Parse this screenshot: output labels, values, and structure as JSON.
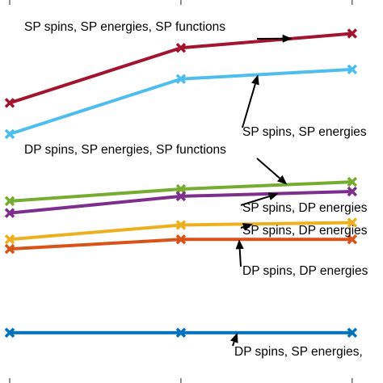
{
  "chart_data": {
    "type": "line",
    "title": "",
    "xlabel": "",
    "ylabel": "",
    "x": [
      1,
      2,
      3
    ],
    "xlim": [
      1,
      3.18
    ],
    "ylim": [
      0.88,
      2.48
    ],
    "grid": false,
    "legend": "none",
    "series": [
      {
        "color": "#A2142F",
        "values": [
          2.05,
          2.28,
          2.34
        ]
      },
      {
        "color": "#4DBEEE",
        "values": [
          1.92,
          2.15,
          2.19
        ]
      },
      {
        "color": "#77AC30",
        "values": [
          1.64,
          1.69,
          1.72
        ]
      },
      {
        "color": "#7E2F8E",
        "values": [
          1.59,
          1.66,
          1.68
        ]
      },
      {
        "color": "#EDB120",
        "values": [
          1.48,
          1.54,
          1.55
        ]
      },
      {
        "color": "#D95319",
        "values": [
          1.44,
          1.48,
          1.48
        ]
      },
      {
        "color": "#0072BD",
        "values": [
          1.09,
          1.09,
          1.09
        ]
      }
    ],
    "annotations": [
      {
        "text": "SP spins, SP energies, SP functions",
        "series": 0
      },
      {
        "text": "SP spins, SP energies",
        "series": 1
      },
      {
        "text": "DP spins, SP energies, SP functions",
        "series": 2
      },
      {
        "text": "SP spins, DP energies",
        "series": 3
      },
      {
        "text": "SP spins, DP energies",
        "series": 4
      },
      {
        "text": "DP spins, DP energies",
        "series": 5
      },
      {
        "text": "DP spins, SP energies,",
        "series": 6
      }
    ]
  }
}
